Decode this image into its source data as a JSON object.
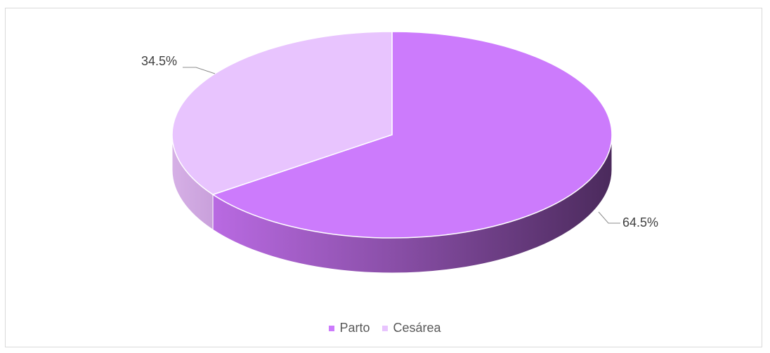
{
  "chart_data": {
    "type": "pie",
    "title": "",
    "series": [
      {
        "values": [
          64.5,
          34.5
        ],
        "labels": [
          "Parto",
          "Cesárea"
        ],
        "data_labels": [
          "64.5%",
          "34.5%"
        ],
        "colors": [
          "#cc7bfc",
          "#e8c4fe"
        ]
      }
    ],
    "legend": {
      "position": "bottom",
      "items": [
        {
          "label": "Parto",
          "color": "#cc7bfc"
        },
        {
          "label": "Cesárea",
          "color": "#e8c4fe"
        }
      ]
    },
    "style": "3d"
  }
}
